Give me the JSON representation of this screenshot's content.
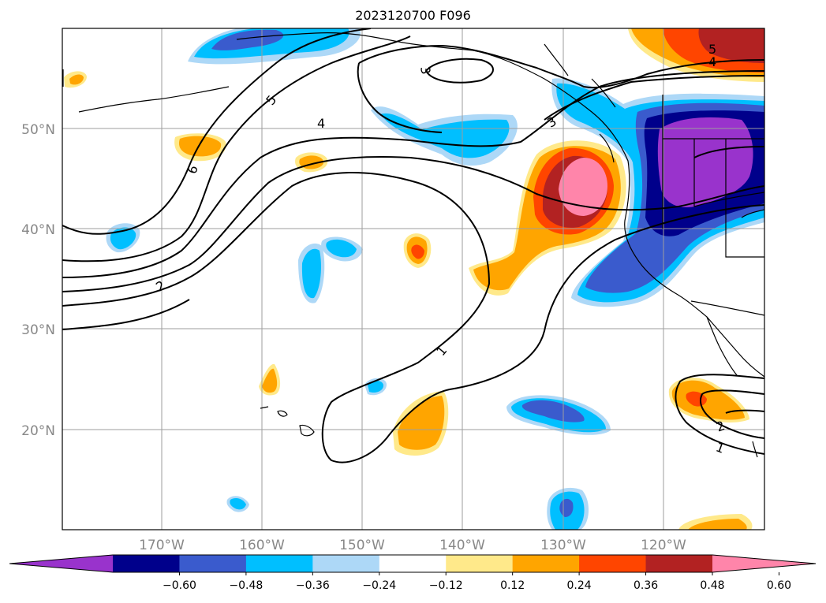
{
  "title": "2023120700 F096",
  "map": {
    "lat_labels": [
      "50°N",
      "40°N",
      "30°N",
      "20°N"
    ],
    "lon_labels": [
      "170°W",
      "160°W",
      "150°W",
      "140°W",
      "130°W",
      "120°W"
    ],
    "contour_labels": [
      "6",
      "5",
      "4",
      "3",
      "2",
      "1",
      "5",
      "4",
      "3",
      "2",
      "1"
    ]
  },
  "colorbar": {
    "ticks": [
      "−0.60",
      "−0.48",
      "−0.36",
      "−0.24",
      "−0.12",
      "0.12",
      "0.24",
      "0.36",
      "0.48",
      "0.60"
    ],
    "colors": [
      "#9933cc",
      "#00008b",
      "#3a5bcd",
      "#00bfff",
      "#add8f7",
      "#ffffff",
      "#ffe98a",
      "#ffa500",
      "#ff4500",
      "#b22222",
      "#ff85aa"
    ]
  }
}
